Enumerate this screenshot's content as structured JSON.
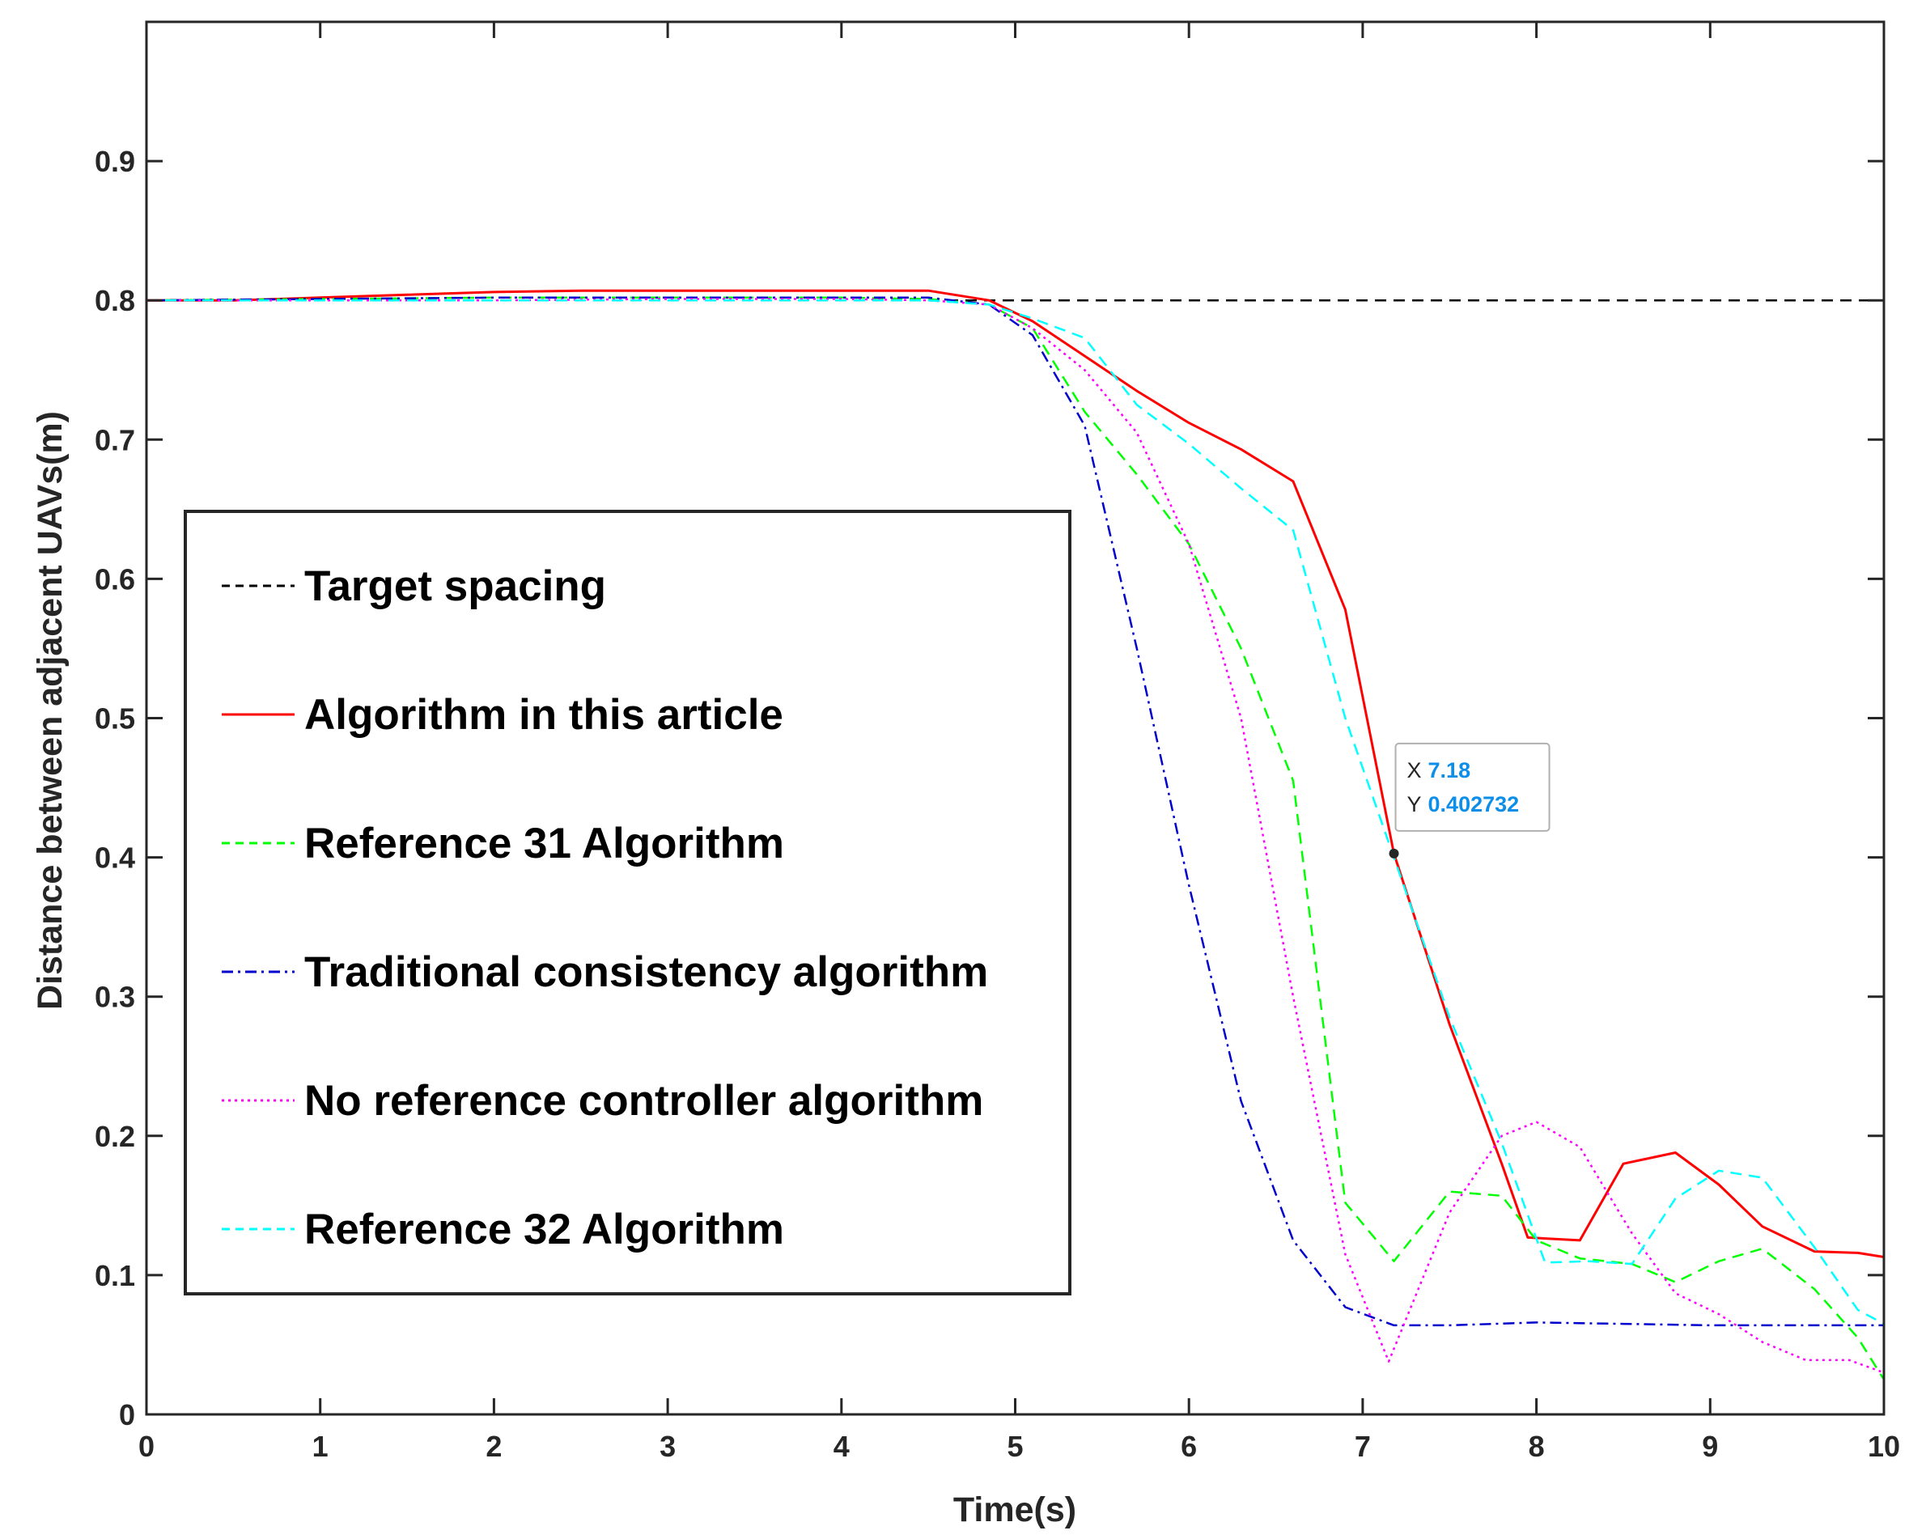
{
  "chart_data": {
    "type": "line",
    "title": "",
    "xlabel": "Time(s)",
    "ylabel": "Distance between adjacent UAVs(m)",
    "xlim": [
      0,
      10
    ],
    "ylim": [
      0,
      1
    ],
    "xticks": [
      "0",
      "1",
      "2",
      "3",
      "4",
      "5",
      "6",
      "7",
      "8",
      "9",
      "10"
    ],
    "yticks": [
      "0",
      "0.1",
      "0.2",
      "0.3",
      "0.4",
      "0.5",
      "0.6",
      "0.7",
      "0.8",
      "0.9"
    ],
    "grid": false,
    "legend_position": "center-left",
    "series": [
      {
        "name": "Target spacing",
        "color": "#000000",
        "style": "dashed",
        "points": [
          [
            0,
            0.8
          ],
          [
            10,
            0.8
          ]
        ]
      },
      {
        "name": "Algorithm in this article",
        "color": "#ff0000",
        "style": "solid",
        "points": [
          [
            0,
            0.8
          ],
          [
            0.5,
            0.8
          ],
          [
            1,
            0.802
          ],
          [
            1.5,
            0.804
          ],
          [
            2,
            0.806
          ],
          [
            2.5,
            0.807
          ],
          [
            3,
            0.807
          ],
          [
            3.5,
            0.807
          ],
          [
            4,
            0.807
          ],
          [
            4.5,
            0.807
          ],
          [
            4.85,
            0.8
          ],
          [
            5.1,
            0.785
          ],
          [
            5.4,
            0.76
          ],
          [
            5.7,
            0.735
          ],
          [
            6.0,
            0.712
          ],
          [
            6.3,
            0.693
          ],
          [
            6.6,
            0.67
          ],
          [
            6.9,
            0.578
          ],
          [
            7.18,
            0.402732
          ],
          [
            7.5,
            0.28
          ],
          [
            7.8,
            0.18
          ],
          [
            7.95,
            0.127
          ],
          [
            8.25,
            0.125
          ],
          [
            8.5,
            0.18
          ],
          [
            8.8,
            0.188
          ],
          [
            9.05,
            0.165
          ],
          [
            9.3,
            0.135
          ],
          [
            9.6,
            0.117
          ],
          [
            9.85,
            0.116
          ],
          [
            10,
            0.113
          ]
        ]
      },
      {
        "name": "Reference 31 Algorithm",
        "color": "#00ff00",
        "style": "dashed",
        "points": [
          [
            0,
            0.8
          ],
          [
            1,
            0.801
          ],
          [
            2,
            0.802
          ],
          [
            3,
            0.802
          ],
          [
            4,
            0.802
          ],
          [
            4.5,
            0.801
          ],
          [
            4.85,
            0.797
          ],
          [
            5.1,
            0.78
          ],
          [
            5.4,
            0.72
          ],
          [
            5.7,
            0.675
          ],
          [
            6.0,
            0.625
          ],
          [
            6.3,
            0.55
          ],
          [
            6.6,
            0.455
          ],
          [
            6.9,
            0.152
          ],
          [
            7.18,
            0.11
          ],
          [
            7.5,
            0.16
          ],
          [
            7.8,
            0.157
          ],
          [
            8.0,
            0.125
          ],
          [
            8.25,
            0.112
          ],
          [
            8.55,
            0.108
          ],
          [
            8.8,
            0.095
          ],
          [
            9.05,
            0.11
          ],
          [
            9.3,
            0.119
          ],
          [
            9.6,
            0.09
          ],
          [
            9.85,
            0.055
          ],
          [
            10,
            0.025
          ]
        ]
      },
      {
        "name": "Traditional consistency algorithm",
        "color": "#0000cd",
        "style": "dashdot",
        "points": [
          [
            0,
            0.8
          ],
          [
            1,
            0.801
          ],
          [
            2,
            0.802
          ],
          [
            3,
            0.802
          ],
          [
            4,
            0.802
          ],
          [
            4.5,
            0.802
          ],
          [
            4.85,
            0.797
          ],
          [
            5.1,
            0.775
          ],
          [
            5.4,
            0.71
          ],
          [
            5.7,
            0.55
          ],
          [
            6.0,
            0.38
          ],
          [
            6.3,
            0.225
          ],
          [
            6.6,
            0.125
          ],
          [
            6.9,
            0.077
          ],
          [
            7.18,
            0.064
          ],
          [
            7.5,
            0.064
          ],
          [
            8.0,
            0.066
          ],
          [
            8.5,
            0.065
          ],
          [
            9,
            0.064
          ],
          [
            9.5,
            0.064
          ],
          [
            10,
            0.064
          ]
        ]
      },
      {
        "name": "No reference controller algorithm",
        "color": "#ff00ff",
        "style": "dotted",
        "points": [
          [
            0,
            0.8
          ],
          [
            1,
            0.8
          ],
          [
            2,
            0.8
          ],
          [
            3,
            0.801
          ],
          [
            4,
            0.801
          ],
          [
            4.5,
            0.8
          ],
          [
            4.85,
            0.797
          ],
          [
            5.1,
            0.78
          ],
          [
            5.4,
            0.75
          ],
          [
            5.7,
            0.705
          ],
          [
            6.0,
            0.625
          ],
          [
            6.3,
            0.5
          ],
          [
            6.6,
            0.3
          ],
          [
            6.9,
            0.115
          ],
          [
            7.15,
            0.038
          ],
          [
            7.5,
            0.145
          ],
          [
            7.8,
            0.2
          ],
          [
            8.0,
            0.21
          ],
          [
            8.25,
            0.192
          ],
          [
            8.55,
            0.13
          ],
          [
            8.8,
            0.087
          ],
          [
            9.05,
            0.072
          ],
          [
            9.3,
            0.052
          ],
          [
            9.55,
            0.039
          ],
          [
            9.8,
            0.039
          ],
          [
            10,
            0.03
          ]
        ]
      },
      {
        "name": "Reference 32 Algorithm",
        "color": "#00ffff",
        "style": "dashed",
        "points": [
          [
            0,
            0.8
          ],
          [
            1,
            0.8
          ],
          [
            2,
            0.8
          ],
          [
            3,
            0.8
          ],
          [
            4,
            0.8
          ],
          [
            4.5,
            0.8
          ],
          [
            4.85,
            0.797
          ],
          [
            5.1,
            0.787
          ],
          [
            5.4,
            0.773
          ],
          [
            5.7,
            0.725
          ],
          [
            6.0,
            0.697
          ],
          [
            6.3,
            0.665
          ],
          [
            6.6,
            0.635
          ],
          [
            6.9,
            0.5
          ],
          [
            7.18,
            0.4
          ],
          [
            7.5,
            0.285
          ],
          [
            7.8,
            0.195
          ],
          [
            8.05,
            0.109
          ],
          [
            8.3,
            0.11
          ],
          [
            8.55,
            0.108
          ],
          [
            8.8,
            0.155
          ],
          [
            9.05,
            0.175
          ],
          [
            9.3,
            0.17
          ],
          [
            9.6,
            0.12
          ],
          [
            9.85,
            0.075
          ],
          [
            10,
            0.065
          ]
        ]
      }
    ],
    "datatip": {
      "x_key": "X",
      "x_value": "7.18",
      "y_key": "Y",
      "y_value": "0.402732",
      "point": [
        7.18,
        0.402732
      ]
    }
  }
}
